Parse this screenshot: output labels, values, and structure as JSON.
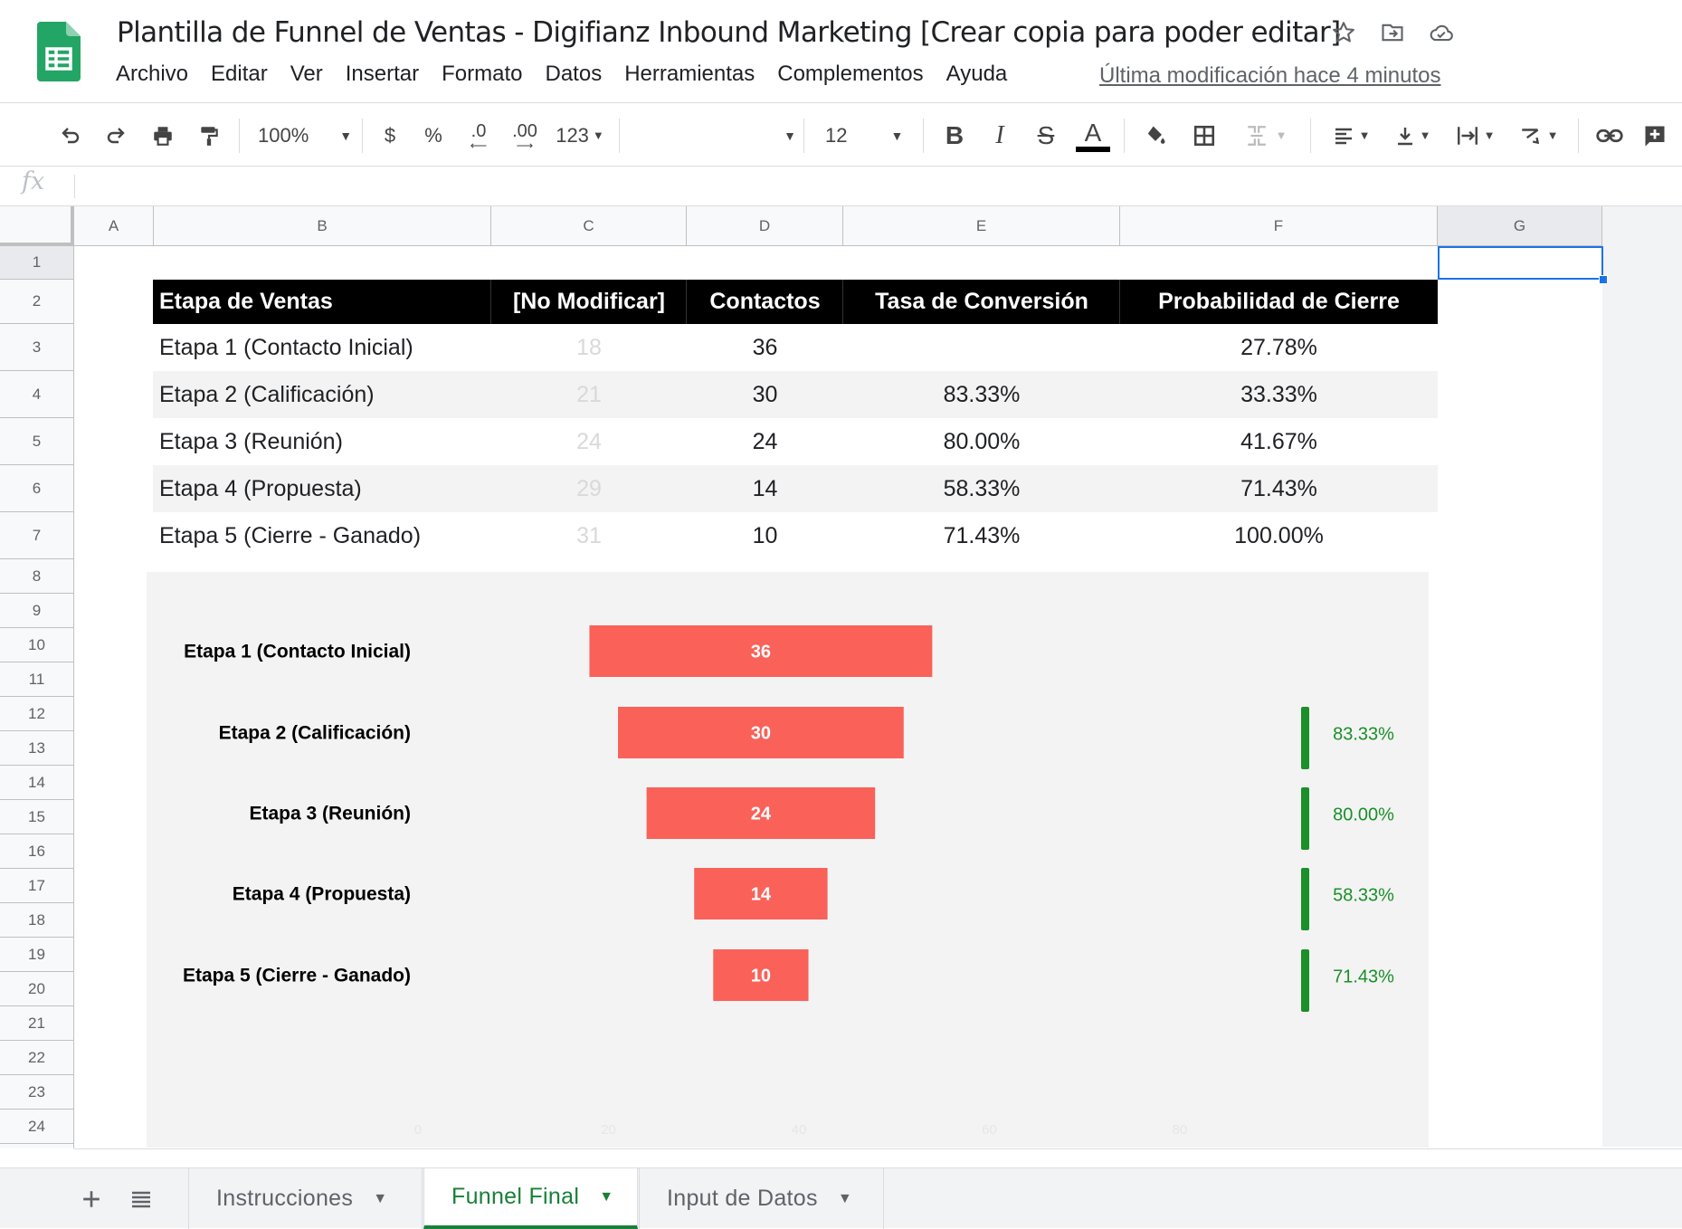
{
  "app": {
    "title": "Plantilla de Funnel de Ventas - Digifianz Inbound Marketing [Crear copia para poder editar]",
    "last_modified": "Última modificación hace 4 minutos",
    "menu": [
      "Archivo",
      "Editar",
      "Ver",
      "Insertar",
      "Formato",
      "Datos",
      "Herramientas",
      "Complementos",
      "Ayuda"
    ]
  },
  "toolbar": {
    "zoom": "100%",
    "currency": "$",
    "percent": "%",
    "decimal_decrease": ".0",
    "decimal_increase": ".00",
    "more_formats": "123",
    "font": "",
    "font_size": "12",
    "bold": "B",
    "italic": "I",
    "strike": "S",
    "text_color_label": "A",
    "text_color": "#000000"
  },
  "formula_bar": {
    "fx": "fx",
    "value": ""
  },
  "columns": [
    "A",
    "B",
    "C",
    "D",
    "E",
    "F",
    "G"
  ],
  "rows": [
    "1",
    "2",
    "3",
    "4",
    "5",
    "6",
    "7",
    "8",
    "9",
    "10",
    "11",
    "12",
    "13",
    "14",
    "15",
    "16",
    "17",
    "18",
    "19",
    "20",
    "21",
    "22",
    "23",
    "24"
  ],
  "table": {
    "headers": [
      "Etapa de Ventas",
      "[No Modificar]",
      "Contactos",
      "Tasa de Conversión",
      "Probabilidad de Cierre"
    ],
    "rows": [
      {
        "etapa": "Etapa 1 (Contacto Inicial)",
        "nomod": "18",
        "contactos": "36",
        "tasa": "",
        "prob": "27.78%"
      },
      {
        "etapa": "Etapa 2 (Calificación)",
        "nomod": "21",
        "contactos": "30",
        "tasa": "83.33%",
        "prob": "33.33%"
      },
      {
        "etapa": "Etapa 3 (Reunión)",
        "nomod": "24",
        "contactos": "24",
        "tasa": "80.00%",
        "prob": "41.67%"
      },
      {
        "etapa": "Etapa 4 (Propuesta)",
        "nomod": "29",
        "contactos": "14",
        "tasa": "58.33%",
        "prob": "71.43%"
      },
      {
        "etapa": "Etapa 5 (Cierre - Ganado)",
        "nomod": "31",
        "contactos": "10",
        "tasa": "71.43%",
        "prob": "100.00%"
      }
    ]
  },
  "chart_data": {
    "type": "bar",
    "orientation": "horizontal",
    "stacked": true,
    "categories": [
      "Etapa 1 (Contacto Inicial)",
      "Etapa 2 (Calificación)",
      "Etapa 3 (Reunión)",
      "Etapa 4 (Propuesta)",
      "Etapa 5 (Cierre - Ganado)"
    ],
    "series": [
      {
        "role": "spacer",
        "values": [
          18,
          21,
          24,
          29,
          31
        ],
        "color": "transparent"
      },
      {
        "values": [
          36,
          30,
          24,
          14,
          10
        ],
        "color": "#f96159",
        "labels": [
          "36",
          "30",
          "24",
          "14",
          "10"
        ]
      }
    ],
    "conversion_labels": [
      "",
      "83.33%",
      "80.00%",
      "58.33%",
      "71.43%"
    ],
    "conversion_color": "#1a8f2a",
    "xlim": [
      0,
      80
    ],
    "xticks": [
      "0",
      "20",
      "40",
      "60",
      "80"
    ],
    "background": "#f3f3f3",
    "legend": "none",
    "grid": false
  },
  "tabs": [
    {
      "label": "Instrucciones",
      "active": false
    },
    {
      "label": "Funnel Final",
      "active": true
    },
    {
      "label": "Input de Datos",
      "active": false
    }
  ]
}
